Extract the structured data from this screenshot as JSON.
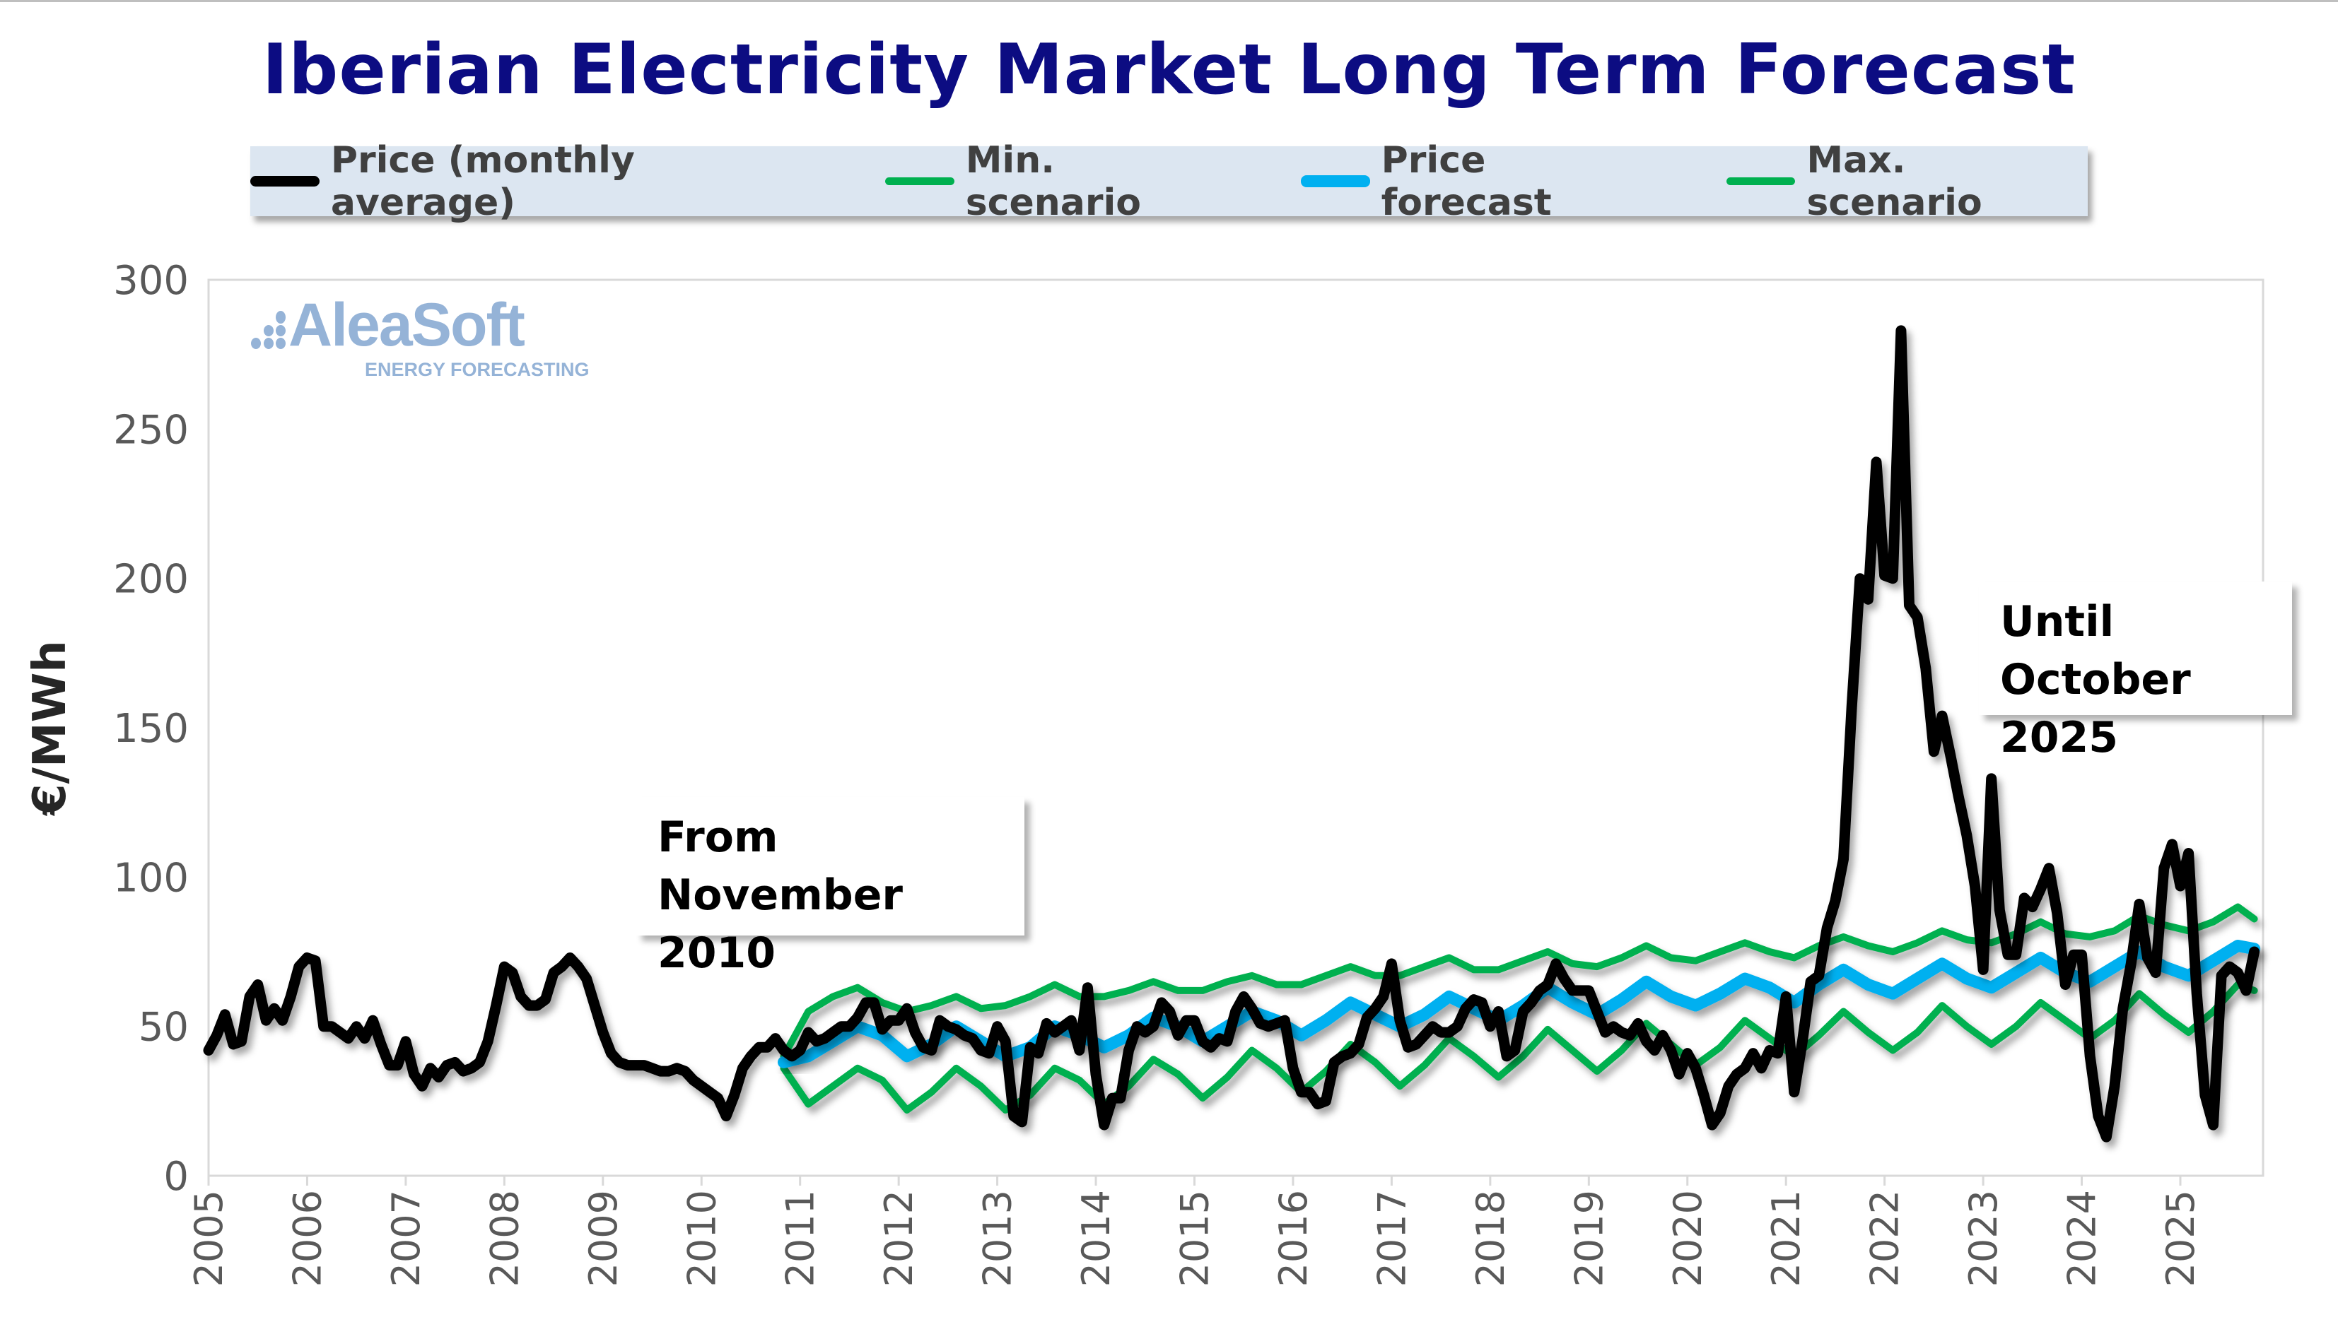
{
  "title": "Iberian Electricity Market Long Term Forecast",
  "legend": [
    {
      "label": "Price (monthly average)",
      "color": "#000000"
    },
    {
      "label": "Min. scenario",
      "color": "#00b050"
    },
    {
      "label": "Price forecast",
      "color": "#00b0f0"
    },
    {
      "label": "Max. scenario",
      "color": "#00b050"
    }
  ],
  "annotations": {
    "from": [
      "From",
      "November 2010"
    ],
    "until": [
      "Until",
      "October 2025"
    ]
  },
  "logo": {
    "name": "AleaSoft",
    "tagline": "ENERGY FORECASTING",
    "color": "#95b3d7"
  },
  "chart_data": {
    "type": "line",
    "title": "Iberian Electricity Market Long Term Forecast",
    "ylabel": "€/MWh",
    "xlabel": "",
    "ylim": [
      0,
      300
    ],
    "xlim": [
      "2005-01",
      "2025-10"
    ],
    "yticks": [
      "0",
      "50",
      "100",
      "150",
      "200",
      "250",
      "300"
    ],
    "xticks": [
      "2005",
      "2006",
      "2007",
      "2008",
      "2009",
      "2010",
      "2011",
      "2012",
      "2013",
      "2014",
      "2015",
      "2016",
      "2017",
      "2018",
      "2019",
      "2020",
      "2021",
      "2022",
      "2023",
      "2024",
      "2025"
    ],
    "grid": false,
    "legend_position": "top",
    "series": [
      {
        "name": "Price (monthly average)",
        "color": "#000000",
        "start": "2005-01",
        "frequency": "monthly",
        "values": [
          42,
          47,
          54,
          44,
          45,
          60,
          64,
          52,
          56,
          52,
          60,
          70,
          73,
          72,
          50,
          50,
          48,
          46,
          50,
          46,
          52,
          44,
          37,
          37,
          45,
          34,
          30,
          36,
          33,
          37,
          38,
          35,
          36,
          38,
          45,
          57,
          70,
          68,
          60,
          57,
          57,
          59,
          68,
          70,
          73,
          70,
          66,
          57,
          48,
          41,
          38,
          37,
          37,
          37,
          36,
          35,
          35,
          36,
          35,
          32,
          30,
          28,
          26,
          20,
          27,
          36,
          40,
          43,
          43,
          46,
          42,
          40,
          42,
          48,
          45,
          46,
          48,
          50,
          50,
          53,
          58,
          58,
          49,
          52,
          52,
          56,
          48,
          43,
          42,
          52,
          50,
          49,
          47,
          46,
          42,
          41,
          50,
          45,
          20,
          18,
          43,
          41,
          51,
          48,
          50,
          52,
          42,
          63,
          34,
          17,
          26,
          26,
          42,
          50,
          48,
          50,
          58,
          55,
          47,
          52,
          52,
          45,
          43,
          46,
          45,
          55,
          60,
          56,
          51,
          50,
          51,
          52,
          36,
          28,
          28,
          24,
          25,
          38,
          40,
          41,
          44,
          53,
          56,
          60,
          71,
          52,
          43,
          44,
          47,
          50,
          48,
          48,
          50,
          56,
          59,
          58,
          50,
          55,
          40,
          42,
          55,
          58,
          62,
          64,
          71,
          66,
          62,
          62,
          62,
          55,
          48,
          50,
          48,
          47,
          51,
          45,
          42,
          47,
          42,
          34,
          41,
          36,
          27,
          17,
          21,
          30,
          34,
          36,
          41,
          36,
          42,
          41,
          60,
          28,
          45,
          65,
          67,
          83,
          92,
          106,
          157,
          200,
          193,
          239,
          201,
          200,
          283,
          191,
          187,
          170,
          142,
          154,
          141,
          127,
          114,
          97,
          69,
          133,
          89,
          74,
          74,
          93,
          90,
          96,
          103,
          88,
          64,
          74,
          74,
          40,
          20,
          13,
          30,
          56,
          71,
          91,
          73,
          68,
          103,
          111,
          97,
          108,
          61,
          27,
          17,
          67,
          70,
          68,
          62,
          75
        ]
      },
      {
        "name": "Min. scenario",
        "color": "#00b050",
        "x": [
          "2010-11",
          "2011-02",
          "2011-05",
          "2011-08",
          "2011-11",
          "2012-02",
          "2012-05",
          "2012-08",
          "2012-11",
          "2013-02",
          "2013-05",
          "2013-08",
          "2013-11",
          "2014-02",
          "2014-05",
          "2014-08",
          "2014-11",
          "2015-02",
          "2015-05",
          "2015-08",
          "2015-11",
          "2016-02",
          "2016-05",
          "2016-08",
          "2016-11",
          "2017-02",
          "2017-05",
          "2017-08",
          "2017-11",
          "2018-02",
          "2018-05",
          "2018-08",
          "2018-11",
          "2019-02",
          "2019-05",
          "2019-08",
          "2019-11",
          "2020-02",
          "2020-05",
          "2020-08",
          "2020-11",
          "2021-02",
          "2021-05",
          "2021-08",
          "2021-11",
          "2022-02",
          "2022-05",
          "2022-08",
          "2022-11",
          "2023-02",
          "2023-05",
          "2023-08",
          "2023-11",
          "2024-02",
          "2024-05",
          "2024-08",
          "2024-11",
          "2025-02",
          "2025-05",
          "2025-08",
          "2025-10"
        ],
        "values": [
          36,
          24,
          30,
          36,
          32,
          22,
          28,
          36,
          30,
          22,
          27,
          36,
          32,
          24,
          30,
          39,
          34,
          26,
          33,
          42,
          36,
          28,
          35,
          44,
          38,
          30,
          37,
          46,
          40,
          33,
          40,
          49,
          42,
          35,
          42,
          51,
          44,
          37,
          43,
          52,
          46,
          40,
          47,
          55,
          48,
          42,
          48,
          57,
          50,
          44,
          50,
          58,
          52,
          46,
          52,
          61,
          54,
          48,
          55,
          64,
          62
        ]
      },
      {
        "name": "Price forecast",
        "color": "#00b0f0",
        "x": [
          "2010-11",
          "2011-02",
          "2011-05",
          "2011-08",
          "2011-11",
          "2012-02",
          "2012-05",
          "2012-08",
          "2012-11",
          "2013-02",
          "2013-05",
          "2013-08",
          "2013-11",
          "2014-02",
          "2014-05",
          "2014-08",
          "2014-11",
          "2015-02",
          "2015-05",
          "2015-08",
          "2015-11",
          "2016-02",
          "2016-05",
          "2016-08",
          "2016-11",
          "2017-02",
          "2017-05",
          "2017-08",
          "2017-11",
          "2018-02",
          "2018-05",
          "2018-08",
          "2018-11",
          "2019-02",
          "2019-05",
          "2019-08",
          "2019-11",
          "2020-02",
          "2020-05",
          "2020-08",
          "2020-11",
          "2021-02",
          "2021-05",
          "2021-08",
          "2021-11",
          "2022-02",
          "2022-05",
          "2022-08",
          "2022-11",
          "2023-02",
          "2023-05",
          "2023-08",
          "2023-11",
          "2024-02",
          "2024-05",
          "2024-08",
          "2024-11",
          "2025-02",
          "2025-05",
          "2025-08",
          "2025-10"
        ],
        "values": [
          38,
          40,
          45,
          50,
          47,
          40,
          44,
          50,
          45,
          40,
          43,
          50,
          47,
          43,
          47,
          53,
          50,
          45,
          50,
          55,
          52,
          47,
          52,
          58,
          54,
          50,
          54,
          60,
          56,
          52,
          57,
          63,
          58,
          54,
          59,
          65,
          60,
          57,
          61,
          66,
          63,
          58,
          64,
          69,
          64,
          61,
          66,
          71,
          66,
          63,
          68,
          73,
          68,
          65,
          70,
          75,
          70,
          67,
          72,
          77,
          76
        ]
      },
      {
        "name": "Max. scenario",
        "color": "#00b050",
        "x": [
          "2010-11",
          "2011-02",
          "2011-05",
          "2011-08",
          "2011-11",
          "2012-02",
          "2012-05",
          "2012-08",
          "2012-11",
          "2013-02",
          "2013-05",
          "2013-08",
          "2013-11",
          "2014-02",
          "2014-05",
          "2014-08",
          "2014-11",
          "2015-02",
          "2015-05",
          "2015-08",
          "2015-11",
          "2016-02",
          "2016-05",
          "2016-08",
          "2016-11",
          "2017-02",
          "2017-05",
          "2017-08",
          "2017-11",
          "2018-02",
          "2018-05",
          "2018-08",
          "2018-11",
          "2019-02",
          "2019-05",
          "2019-08",
          "2019-11",
          "2020-02",
          "2020-05",
          "2020-08",
          "2020-11",
          "2021-02",
          "2021-05",
          "2021-08",
          "2021-11",
          "2022-02",
          "2022-05",
          "2022-08",
          "2022-11",
          "2023-02",
          "2023-05",
          "2023-08",
          "2023-11",
          "2024-02",
          "2024-05",
          "2024-08",
          "2024-11",
          "2025-02",
          "2025-05",
          "2025-08",
          "2025-10"
        ],
        "values": [
          40,
          55,
          60,
          63,
          58,
          55,
          57,
          60,
          56,
          57,
          60,
          64,
          60,
          60,
          62,
          65,
          62,
          62,
          65,
          67,
          64,
          64,
          67,
          70,
          67,
          67,
          70,
          73,
          69,
          69,
          72,
          75,
          71,
          70,
          73,
          77,
          73,
          72,
          75,
          78,
          75,
          73,
          77,
          80,
          77,
          75,
          78,
          82,
          79,
          78,
          81,
          85,
          81,
          80,
          82,
          87,
          84,
          82,
          85,
          90,
          86
        ]
      }
    ]
  }
}
